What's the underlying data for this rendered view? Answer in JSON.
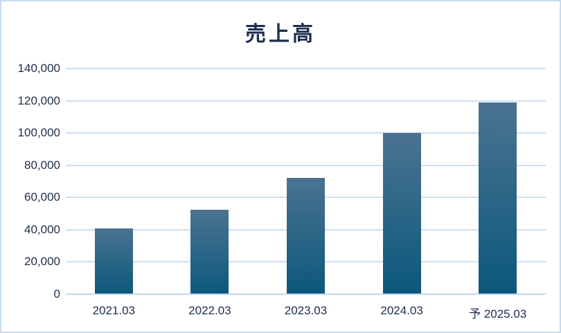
{
  "chart_data": {
    "type": "bar",
    "title": "売上高",
    "categories": [
      "2021.03",
      "2022.03",
      "2023.03",
      "2024.03",
      "予 2025.03"
    ],
    "values": [
      41000,
      52500,
      72000,
      100000,
      119000
    ],
    "xlabel": "",
    "ylabel": "",
    "ylim": [
      0,
      140000
    ],
    "ytick_step": 20000,
    "ytick_labels": [
      "0",
      "20,000",
      "40,000",
      "60,000",
      "80,000",
      "100,000",
      "120,000",
      "140,000"
    ],
    "grid": true,
    "legend": false
  },
  "colors": {
    "bar_gradient_top": "#4b7391",
    "bar_gradient_bottom": "#0b587c",
    "gridline": "#cddff2",
    "axis_line": "#c3d7ee",
    "text": "#1d2e4e",
    "frame_border": "#c7dbf2",
    "background": "#ffffff"
  }
}
